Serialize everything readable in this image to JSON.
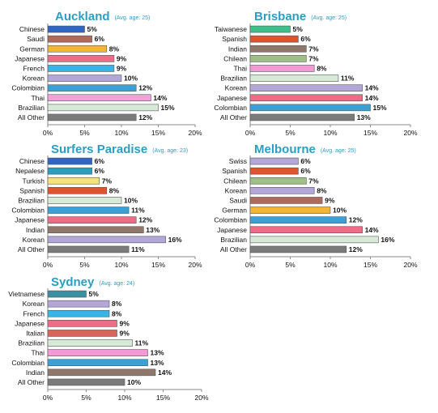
{
  "chart_data": [
    {
      "type": "bar",
      "orientation": "horizontal",
      "title": "Auckland",
      "subtitle": "(Avg. age: 25)",
      "categories": [
        "Chinese",
        "Saudi",
        "German",
        "Japanese",
        "French",
        "Korean",
        "Colombian",
        "Thai",
        "Brazilian",
        "All Other"
      ],
      "values": [
        5,
        6,
        8,
        9,
        9,
        10,
        12,
        14,
        15,
        12
      ],
      "value_labels": [
        "5%",
        "6%",
        "8%",
        "9%",
        "9%",
        "10%",
        "12%",
        "14%",
        "15%",
        "12%"
      ],
      "xlim": [
        0,
        20
      ],
      "xticks": [
        "0%",
        "5%",
        "10%",
        "15%",
        "20%"
      ],
      "colors": [
        "#2f66c6",
        "#b06a5c",
        "#f2b632",
        "#ee6c86",
        "#37b5e6",
        "#b3a7d9",
        "#3aa0d6",
        "#f3a1d9",
        "#d7ead8",
        "#7b7b7b"
      ]
    },
    {
      "type": "bar",
      "orientation": "horizontal",
      "title": "Brisbane",
      "subtitle": "(Avg. age: 25)",
      "categories": [
        "Taiwanese",
        "Spanish",
        "Indian",
        "Chilean",
        "Thai",
        "Brazilian",
        "Korean",
        "Japanese",
        "Colombian",
        "All Other"
      ],
      "values": [
        5,
        6,
        7,
        7,
        8,
        11,
        14,
        14,
        15,
        13
      ],
      "value_labels": [
        "5%",
        "6%",
        "7%",
        "7%",
        "8%",
        "11%",
        "14%",
        "14%",
        "15%",
        "13%"
      ],
      "xlim": [
        0,
        20
      ],
      "xticks": [
        "0%",
        "5%",
        "10%",
        "15%",
        "20%"
      ],
      "colors": [
        "#3fbf8a",
        "#e0532e",
        "#8f786b",
        "#9ebf86",
        "#f39ad6",
        "#d7ead8",
        "#b3a7d9",
        "#ee6c86",
        "#3aa0d6",
        "#7b7b7b"
      ]
    },
    {
      "type": "bar",
      "orientation": "horizontal",
      "title": "Surfers Paradise",
      "subtitle": "(Avg. age: 23)",
      "categories": [
        "Chinese",
        "Nepalese",
        "Turkish",
        "Spanish",
        "Brazilian",
        "Colombian",
        "Japanese",
        "Indian",
        "Korean",
        "All Other"
      ],
      "values": [
        6,
        6,
        7,
        8,
        10,
        11,
        12,
        13,
        16,
        11
      ],
      "value_labels": [
        "6%",
        "6%",
        "7%",
        "8%",
        "10%",
        "11%",
        "12%",
        "13%",
        "16%",
        "11%"
      ],
      "xlim": [
        0,
        20
      ],
      "xticks": [
        "0%",
        "5%",
        "10%",
        "15%",
        "20%"
      ],
      "colors": [
        "#2f66c6",
        "#2b9ebf",
        "#f5e27a",
        "#e0532e",
        "#d7ead8",
        "#3aa0d6",
        "#ee6c86",
        "#8f786b",
        "#b3a7d9",
        "#7b7b7b"
      ]
    },
    {
      "type": "bar",
      "orientation": "horizontal",
      "title": "Melbourne",
      "subtitle": "(Avg. age: 25)",
      "categories": [
        "Swiss",
        "Spanish",
        "Chilean",
        "Korean",
        "Saudi",
        "German",
        "Colombian",
        "Japanese",
        "Brazilian",
        "All Other"
      ],
      "values": [
        6,
        6,
        7,
        8,
        9,
        10,
        12,
        14,
        16,
        12
      ],
      "value_labels": [
        "6%",
        "6%",
        "7%",
        "8%",
        "9%",
        "10%",
        "12%",
        "14%",
        "16%",
        "12%"
      ],
      "xlim": [
        0,
        20
      ],
      "xticks": [
        "0%",
        "5%",
        "10%",
        "15%",
        "20%"
      ],
      "colors": [
        "#b3a7d9",
        "#e0532e",
        "#9ebf86",
        "#b3a7d9",
        "#b06a5c",
        "#f2b632",
        "#3aa0d6",
        "#ee6c86",
        "#d7ead8",
        "#7b7b7b"
      ]
    },
    {
      "type": "bar",
      "orientation": "horizontal",
      "title": "Sydney",
      "subtitle": "(Avg. age: 24)",
      "categories": [
        "Vietnamese",
        "Korean",
        "French",
        "Japanese",
        "Italian",
        "Brazilian",
        "Thai",
        "Colombian",
        "Indian",
        "All Other"
      ],
      "values": [
        5,
        8,
        8,
        9,
        9,
        11,
        13,
        13,
        14,
        10
      ],
      "value_labels": [
        "5%",
        "8%",
        "8%",
        "9%",
        "9%",
        "11%",
        "13%",
        "13%",
        "14%",
        "10%"
      ],
      "xlim": [
        0,
        20
      ],
      "xticks": [
        "0%",
        "5%",
        "10%",
        "15%",
        "20%"
      ],
      "colors": [
        "#3a8fa0",
        "#b3a7d9",
        "#37b5e6",
        "#ee6c86",
        "#d9645a",
        "#d7ead8",
        "#f39ad6",
        "#3aa0d6",
        "#8f786b",
        "#7b7b7b"
      ]
    }
  ]
}
